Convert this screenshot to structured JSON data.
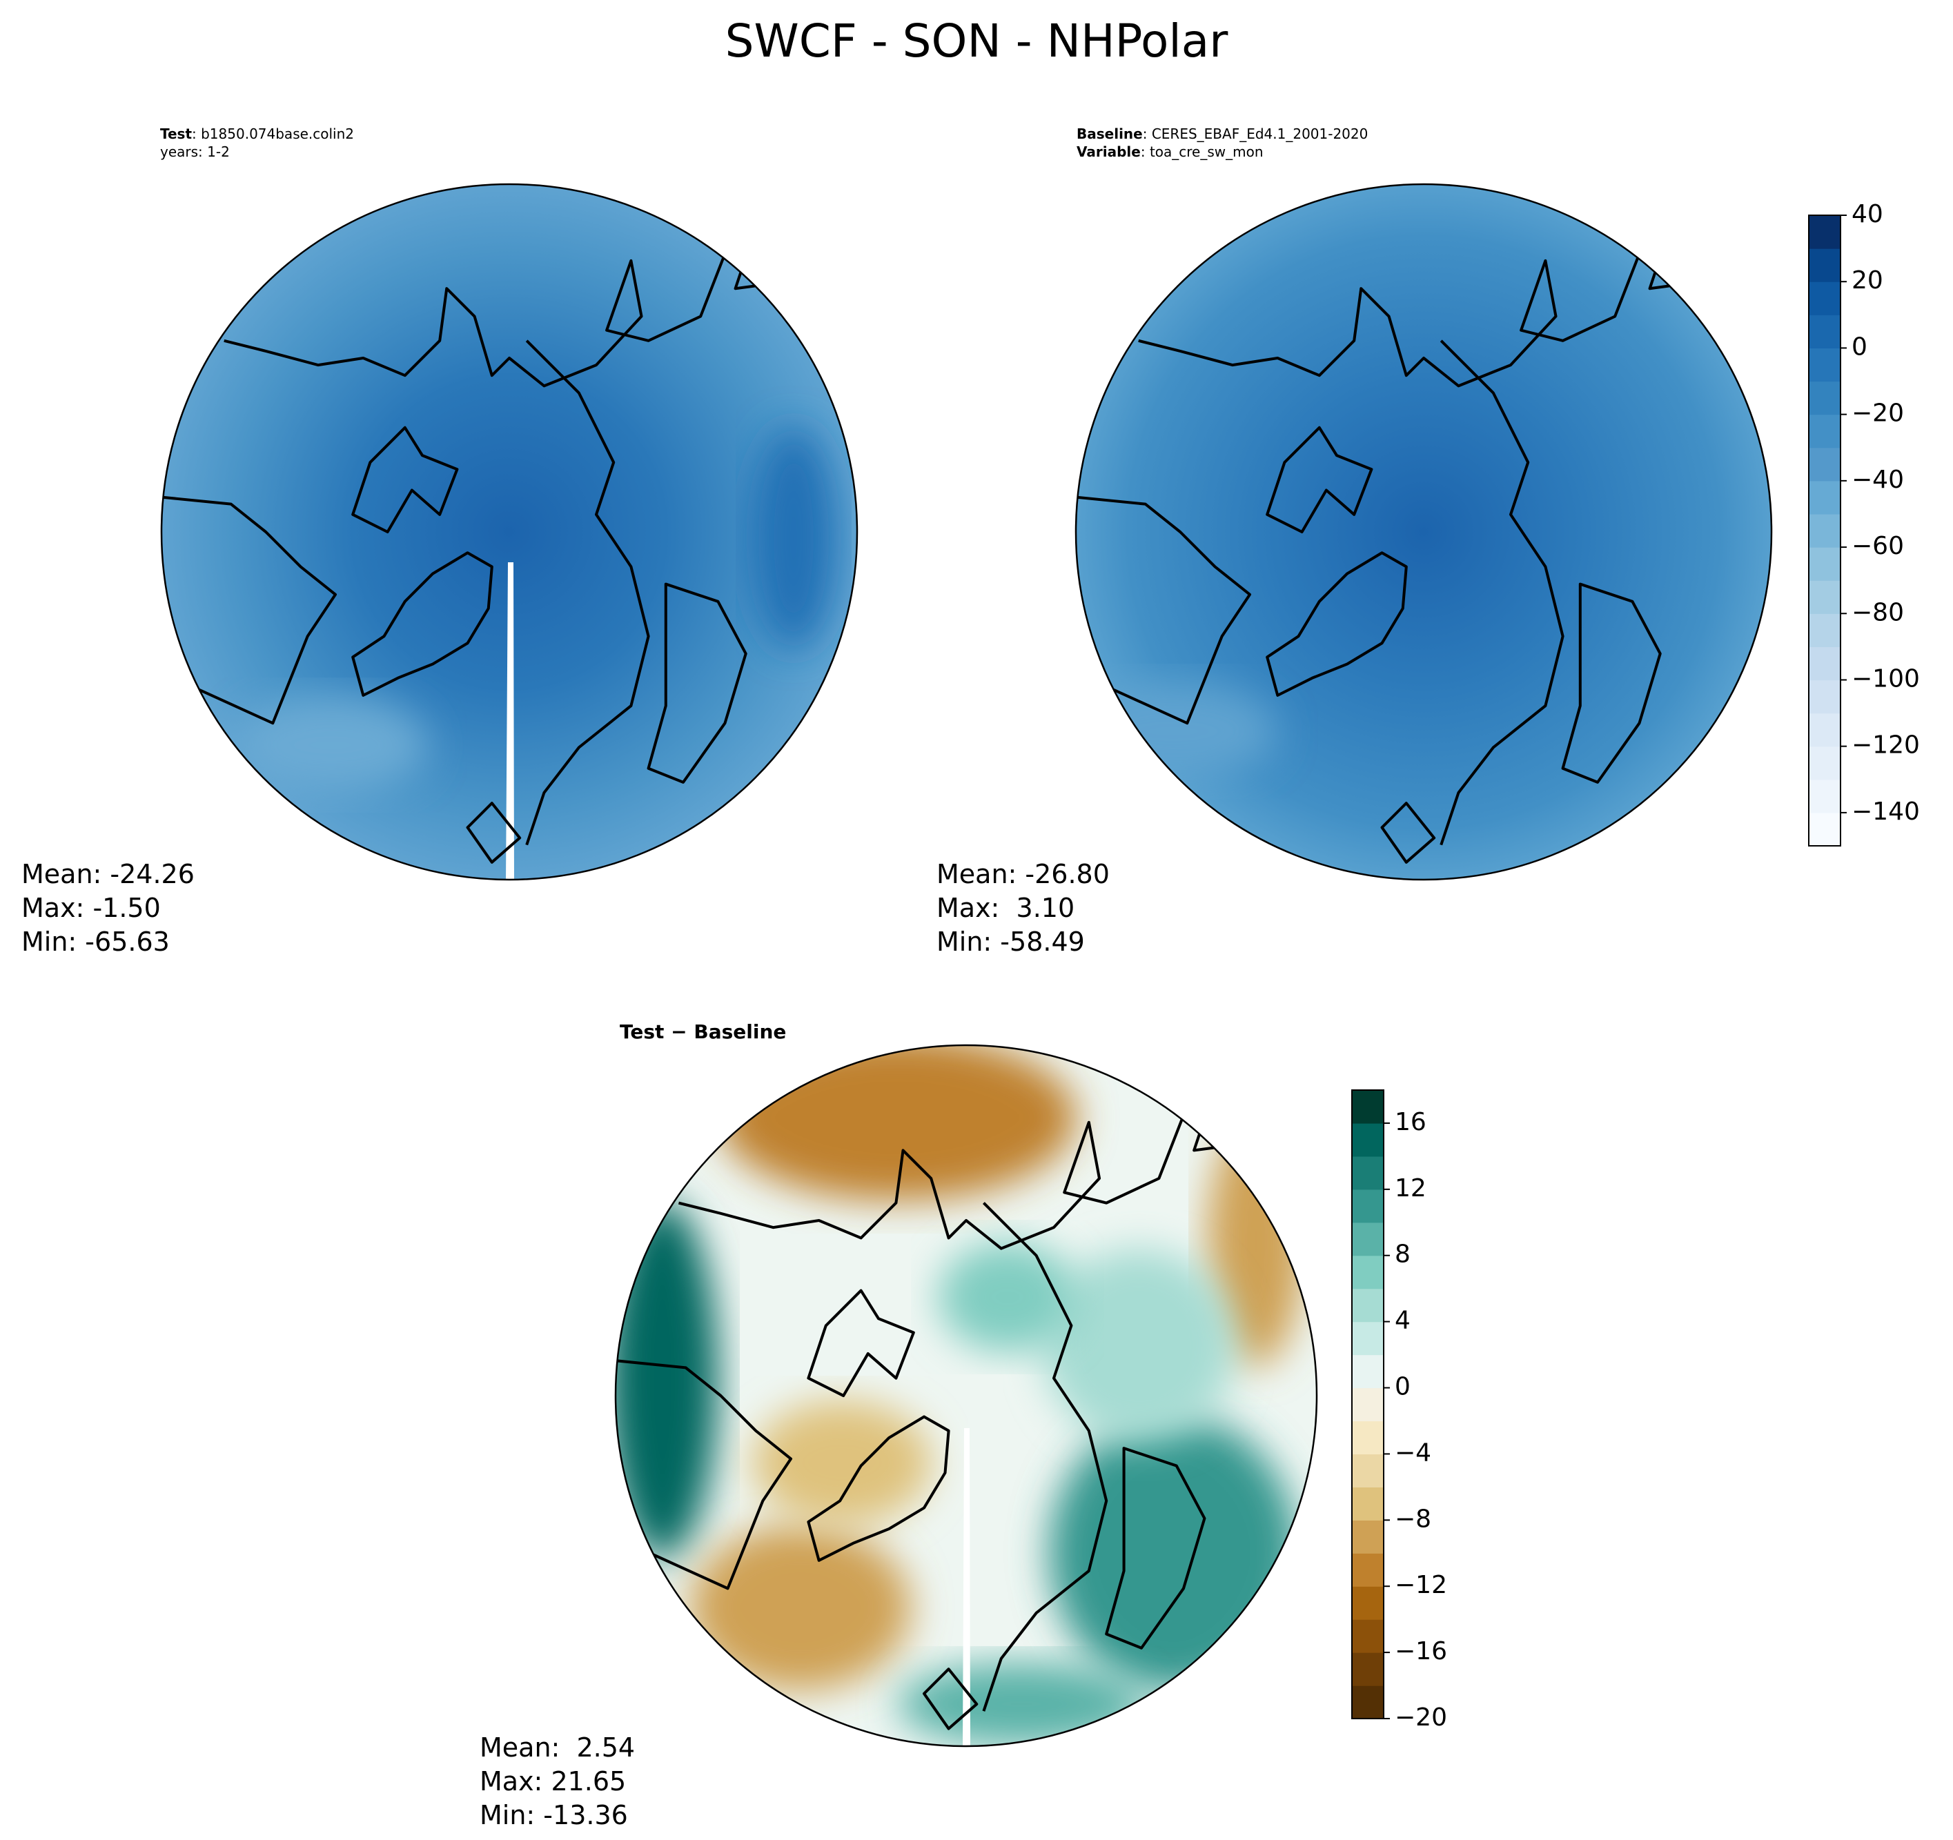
{
  "title": "SWCF - SON - NHPolar",
  "panels": [
    {
      "labels": [
        {
          "key": "Test",
          "value": ": b1850.074base.colin2"
        },
        {
          "key": "",
          "value": "years: 1-2"
        }
      ],
      "stats": [
        "Mean: -24.26",
        "Max: -1.50",
        "Min: -65.63"
      ]
    },
    {
      "labels": [
        {
          "key": "Baseline",
          "value": ": CERES_EBAF_Ed4.1_2001-2020"
        },
        {
          "key": "Variable",
          "value": ": toa_cre_sw_mon"
        }
      ],
      "stats": [
        "Mean: -26.80",
        "Max:  3.10",
        "Min: -58.49"
      ]
    },
    {
      "title": "Test − Baseline",
      "stats": [
        "Mean:  2.54",
        "Max: 21.65",
        "Min: -13.36"
      ]
    }
  ],
  "colorbars": [
    {
      "lim": [
        -150,
        40
      ],
      "ticks": [
        40,
        20,
        0,
        {
          "value": -20,
          "label": "−20"
        },
        {
          "value": -40,
          "label": "−40"
        },
        {
          "value": -60,
          "label": "−60"
        },
        {
          "value": -80,
          "label": "−80"
        },
        {
          "value": -100,
          "label": "−100"
        },
        {
          "value": -120,
          "label": "−120"
        },
        {
          "value": -140,
          "label": "−140"
        }
      ],
      "colors": [
        "#f7fbff",
        "#eef5fc",
        "#e5eff9",
        "#dce9f6",
        "#d0e1f2",
        "#c4daee",
        "#b5d4e9",
        "#a3cce3",
        "#8fc2de",
        "#7ab6d9",
        "#66aad4",
        "#5499cb",
        "#4390c6",
        "#3383be",
        "#2676b8",
        "#1a68ae",
        "#0f5aa3",
        "#08488e",
        "#08306b"
      ]
    },
    {
      "lim": [
        -20,
        18
      ],
      "ticks": [
        16,
        12,
        8,
        4,
        0,
        {
          "value": -4,
          "label": "−4"
        },
        {
          "value": -8,
          "label": "−8"
        },
        {
          "value": -12,
          "label": "−12"
        },
        {
          "value": -16,
          "label": "−16"
        },
        {
          "value": -20,
          "label": "−20"
        }
      ],
      "colors": [
        "#543005",
        "#6f3f07",
        "#8c510a",
        "#a6650f",
        "#bf812d",
        "#cfa155",
        "#dfc27d",
        "#ebd7a5",
        "#f6e8c3",
        "#f5f0e0",
        "#e8f4f2",
        "#c7eae5",
        "#a6dcd3",
        "#80cdc1",
        "#5ab2a8",
        "#35978f",
        "#1a7e76",
        "#01665e",
        "#003c30"
      ]
    }
  ]
}
